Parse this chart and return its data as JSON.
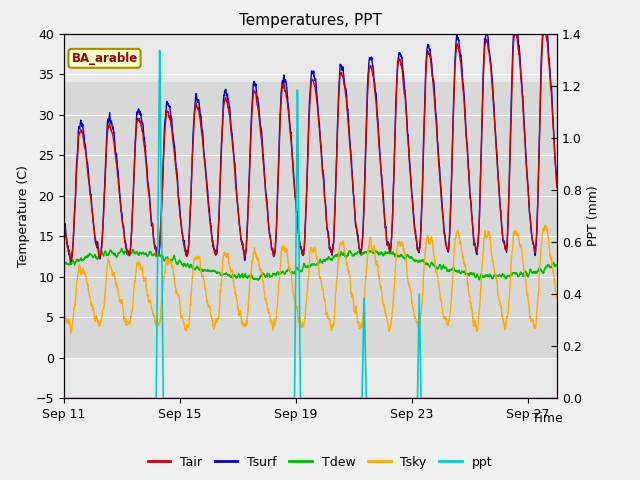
{
  "title": "Temperatures, PPT",
  "xlabel": "Time",
  "ylabel_left": "Temperature (C)",
  "ylabel_right": "PPT (mm)",
  "ylim_left": [
    -5,
    40
  ],
  "ylim_right": [
    0.0,
    1.4
  ],
  "yticks_left": [
    -5,
    0,
    5,
    10,
    15,
    20,
    25,
    30,
    35,
    40
  ],
  "yticks_right": [
    0.0,
    0.2,
    0.4,
    0.6,
    0.8,
    1.0,
    1.2,
    1.4
  ],
  "xtick_labels": [
    "Sep 11",
    "Sep 15",
    "Sep 19",
    "Sep 23",
    "Sep 27"
  ],
  "xtick_positions": [
    0,
    4,
    8,
    12,
    16
  ],
  "shading_ymin": 0,
  "shading_ymax": 34,
  "legend_site": "BA_arable",
  "line_colors": {
    "Tair": "#cc0000",
    "Tsurf": "#0000cc",
    "Tdew": "#00bb00",
    "Tsky": "#ffaa00",
    "ppt": "#00cccc"
  },
  "line_widths": {
    "Tair": 1.0,
    "Tsurf": 1.0,
    "Tdew": 1.0,
    "Tsky": 1.0,
    "ppt": 1.2
  },
  "background_color": "#f0f0f0",
  "plot_bg_color": "#e8e8e8",
  "shading_color": "#d8d8d8",
  "title_fontsize": 11,
  "axis_fontsize": 9,
  "legend_fontsize": 9,
  "figsize": [
    6.4,
    4.8
  ],
  "dpi": 100
}
